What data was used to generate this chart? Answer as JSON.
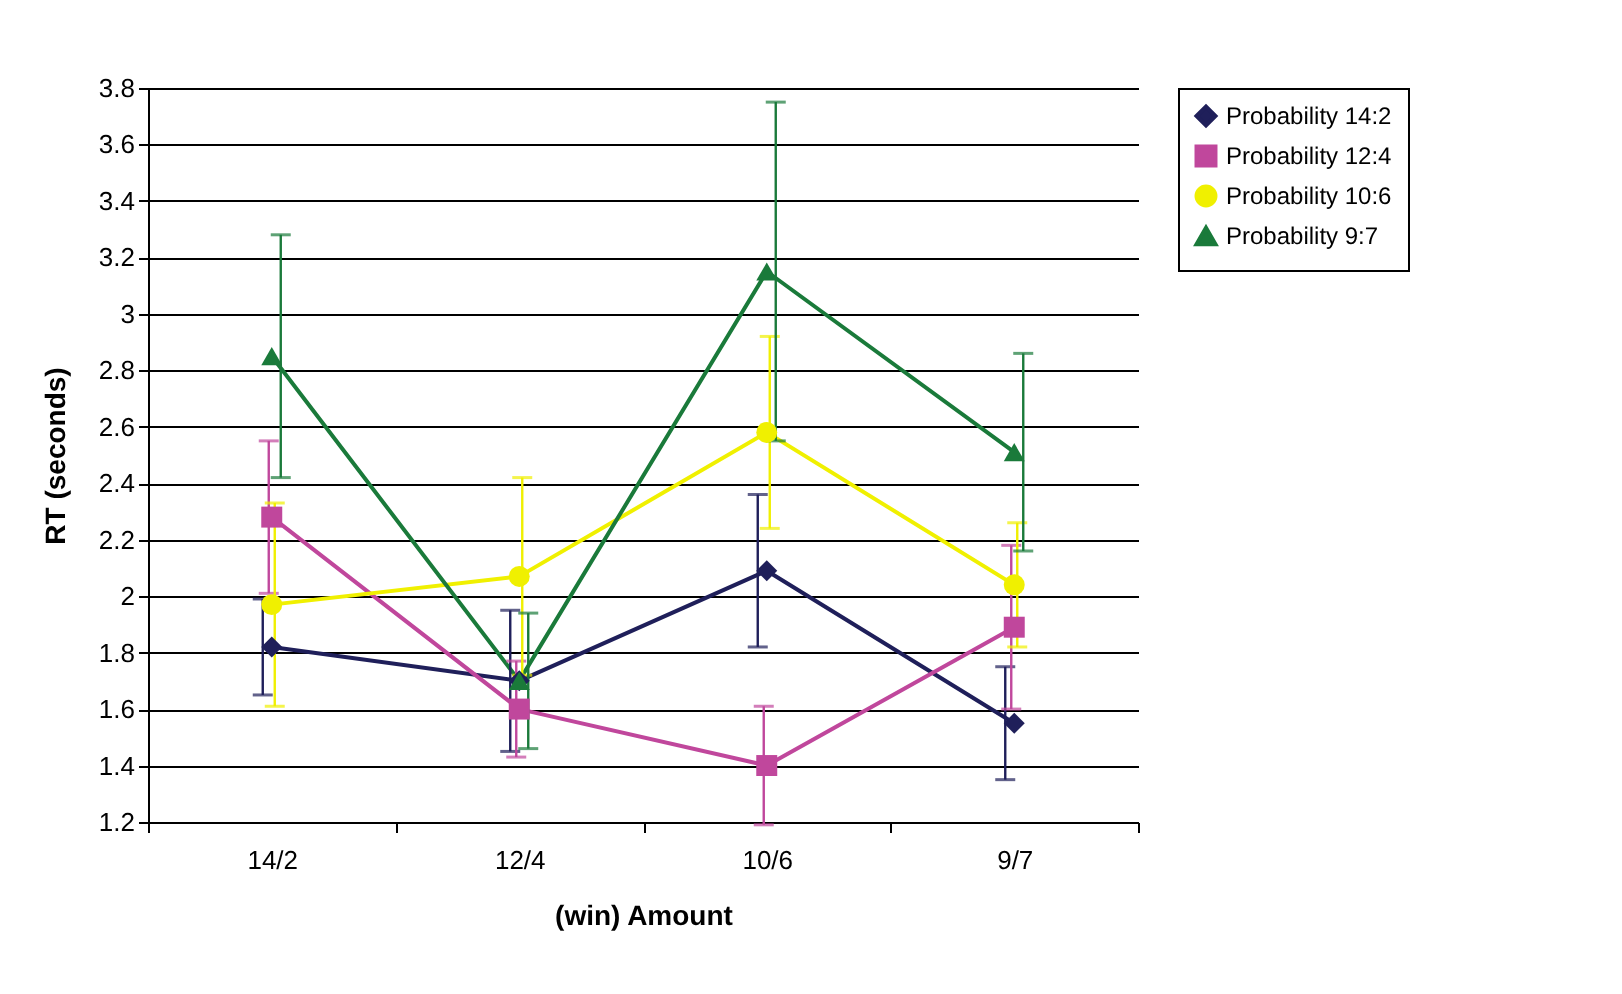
{
  "chart_data": {
    "type": "line",
    "xlabel": "(win) Amount",
    "ylabel": "RT (seconds)",
    "categories": [
      "14/2",
      "12/4",
      "10/6",
      "9/7"
    ],
    "series": [
      {
        "name": "Probability 14:2",
        "color": "#1f1f5a",
        "marker": "diamond",
        "values": [
          1.82,
          1.7,
          2.09,
          1.55
        ],
        "errors": [
          0.17,
          0.25,
          0.27,
          0.2
        ]
      },
      {
        "name": "Probability 12:4",
        "color": "#c0479c",
        "marker": "square",
        "values": [
          2.28,
          1.6,
          1.4,
          1.89
        ],
        "errors": [
          0.27,
          0.17,
          0.21,
          0.29
        ]
      },
      {
        "name": "Probability 10:6",
        "color": "#f0f000",
        "marker": "circle",
        "values": [
          1.97,
          2.07,
          2.58,
          2.04
        ],
        "errors": [
          0.36,
          0.35,
          0.34,
          0.22
        ]
      },
      {
        "name": "Probability 9:7",
        "color": "#1a7a3a",
        "marker": "triangle",
        "values": [
          2.85,
          1.7,
          3.15,
          2.51
        ],
        "errors": [
          0.43,
          0.24,
          0.6,
          0.35
        ]
      }
    ],
    "ylim": [
      1.2,
      3.8
    ],
    "yticks": [
      1.2,
      1.4,
      1.6,
      1.8,
      2,
      2.2,
      2.4,
      2.6,
      2.8,
      3,
      3.2,
      3.4,
      3.6,
      3.8
    ],
    "grid": "y",
    "legend": "right"
  }
}
